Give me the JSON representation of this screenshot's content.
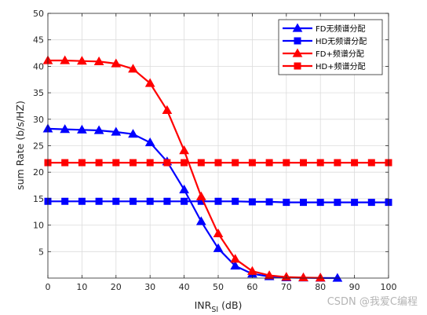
{
  "chart_data": {
    "type": "line",
    "xlabel_main": "INR",
    "xlabel_sub": "SI",
    "xlabel_unit": " (dB)",
    "ylabel": "sum Rate (b/s/HZ)",
    "xlim": [
      0,
      100
    ],
    "ylim": [
      0,
      50
    ],
    "xticks": [
      0,
      10,
      20,
      30,
      40,
      50,
      60,
      70,
      80,
      90,
      100
    ],
    "yticks": [
      5,
      10,
      15,
      20,
      25,
      30,
      35,
      40,
      45,
      50
    ],
    "grid": true,
    "legend_position": "top-right",
    "series": [
      {
        "name": "FD无频谱分配",
        "color": "#0000ff",
        "marker": "triangle",
        "x": [
          0,
          5,
          10,
          15,
          20,
          25,
          30,
          35,
          40,
          45,
          50,
          55,
          60,
          65,
          70,
          75,
          80,
          85
        ],
        "y": [
          28.2,
          28.1,
          28.0,
          27.9,
          27.6,
          27.2,
          25.6,
          22.0,
          16.7,
          10.7,
          5.6,
          2.3,
          0.8,
          0.3,
          0.1,
          0.05,
          0.02,
          0.0
        ]
      },
      {
        "name": "HD无频谱分配",
        "color": "#0000ff",
        "marker": "square",
        "x": [
          0,
          5,
          10,
          15,
          20,
          25,
          30,
          35,
          40,
          45,
          50,
          55,
          60,
          65,
          70,
          75,
          80,
          85,
          90,
          95,
          100
        ],
        "y": [
          14.5,
          14.5,
          14.5,
          14.5,
          14.5,
          14.5,
          14.5,
          14.5,
          14.5,
          14.5,
          14.5,
          14.5,
          14.4,
          14.4,
          14.3,
          14.3,
          14.3,
          14.3,
          14.3,
          14.3,
          14.3
        ]
      },
      {
        "name": "FD+频谱分配",
        "color": "#ff0000",
        "marker": "triangle",
        "x": [
          0,
          5,
          10,
          15,
          20,
          25,
          30,
          35,
          40,
          45,
          50,
          55,
          60,
          65,
          70,
          75,
          80
        ],
        "y": [
          41.1,
          41.1,
          41.0,
          40.9,
          40.5,
          39.5,
          36.8,
          31.7,
          24.1,
          15.4,
          8.4,
          3.6,
          1.3,
          0.5,
          0.2,
          0.1,
          0.05
        ]
      },
      {
        "name": "HD+频谱分配",
        "color": "#ff0000",
        "marker": "square",
        "x": [
          0,
          5,
          10,
          15,
          20,
          25,
          30,
          35,
          40,
          45,
          50,
          55,
          60,
          65,
          70,
          75,
          80,
          85,
          90,
          95,
          100
        ],
        "y": [
          21.8,
          21.8,
          21.8,
          21.8,
          21.8,
          21.8,
          21.8,
          21.8,
          21.8,
          21.8,
          21.8,
          21.8,
          21.8,
          21.8,
          21.8,
          21.8,
          21.8,
          21.8,
          21.8,
          21.8,
          21.8
        ]
      }
    ]
  },
  "watermark": "CSDN @我爱C编程"
}
